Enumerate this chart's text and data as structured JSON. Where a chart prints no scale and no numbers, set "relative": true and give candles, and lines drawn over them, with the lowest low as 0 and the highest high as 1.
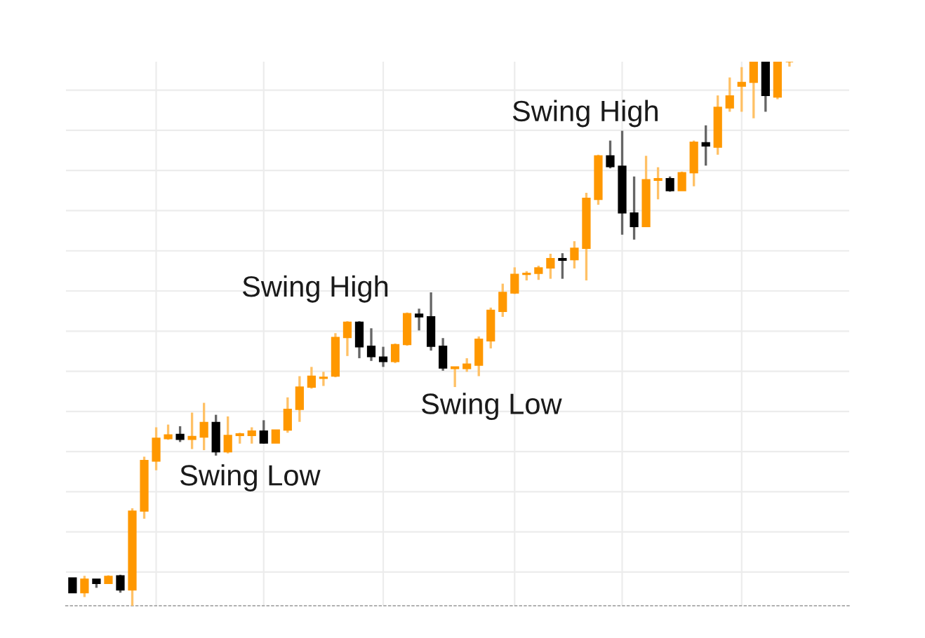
{
  "chart_data": {
    "type": "candlestick",
    "relative": true,
    "categories": [
      null,
      null,
      null,
      null,
      null,
      null,
      null,
      null,
      null,
      null,
      null,
      null,
      null,
      null,
      null,
      null,
      null,
      null,
      null,
      null,
      null,
      null,
      null,
      null,
      null,
      null,
      null,
      null,
      null,
      null,
      null,
      null,
      null,
      null,
      null,
      null,
      null,
      null,
      null,
      null,
      null,
      null,
      null,
      null,
      null,
      null,
      null,
      null,
      null,
      null,
      null,
      null,
      null,
      null,
      null,
      null,
      null,
      null,
      null,
      null,
      null
    ],
    "ohlc": [
      [
        0.051,
        0.051,
        0.024,
        0.024
      ],
      [
        0.024,
        0.055,
        0.016,
        0.049
      ],
      [
        0.049,
        0.049,
        0.033,
        0.041
      ],
      [
        0.041,
        0.056,
        0.041,
        0.054
      ],
      [
        0.055,
        0.057,
        0.024,
        0.029
      ],
      [
        0.029,
        0.179,
        0.0,
        0.174
      ],
      [
        0.174,
        0.274,
        0.16,
        0.267
      ],
      [
        0.266,
        0.328,
        0.249,
        0.308
      ],
      [
        0.307,
        0.333,
        0.305,
        0.314
      ],
      [
        0.315,
        0.33,
        0.301,
        0.306
      ],
      [
        0.306,
        0.355,
        0.288,
        0.311
      ],
      [
        0.31,
        0.373,
        0.286,
        0.337
      ],
      [
        0.337,
        0.351,
        0.276,
        0.283
      ],
      [
        0.283,
        0.348,
        0.28,
        0.313
      ],
      [
        0.313,
        0.318,
        0.298,
        0.316
      ],
      [
        0.313,
        0.328,
        0.298,
        0.321
      ],
      [
        0.321,
        0.341,
        0.298,
        0.299
      ],
      [
        0.299,
        0.323,
        0.299,
        0.323
      ],
      [
        0.323,
        0.383,
        0.318,
        0.361
      ],
      [
        0.361,
        0.422,
        0.338,
        0.402
      ],
      [
        0.402,
        0.439,
        0.399,
        0.422
      ],
      [
        0.418,
        0.43,
        0.404,
        0.42
      ],
      [
        0.422,
        0.501,
        0.42,
        0.493
      ],
      [
        0.493,
        0.523,
        0.459,
        0.521
      ],
      [
        0.521,
        0.523,
        0.455,
        0.476
      ],
      [
        0.477,
        0.51,
        0.45,
        0.458
      ],
      [
        0.457,
        0.476,
        0.439,
        0.449
      ],
      [
        0.449,
        0.482,
        0.446,
        0.48
      ],
      [
        0.48,
        0.539,
        0.478,
        0.537
      ],
      [
        0.536,
        0.546,
        0.506,
        0.531
      ],
      [
        0.531,
        0.576,
        0.469,
        0.477
      ],
      [
        0.477,
        0.492,
        0.432,
        0.437
      ],
      [
        0.436,
        0.439,
        0.402,
        0.439
      ],
      [
        0.436,
        0.455,
        0.43,
        0.444
      ],
      [
        0.442,
        0.495,
        0.422,
        0.49
      ],
      [
        0.487,
        0.548,
        0.473,
        0.543
      ],
      [
        0.541,
        0.592,
        0.531,
        0.576
      ],
      [
        0.575,
        0.622,
        0.573,
        0.609
      ],
      [
        0.609,
        0.615,
        0.598,
        0.611
      ],
      [
        0.611,
        0.625,
        0.599,
        0.621
      ],
      [
        0.621,
        0.647,
        0.601,
        0.638
      ],
      [
        0.638,
        0.648,
        0.601,
        0.635
      ],
      [
        0.636,
        0.67,
        0.62,
        0.657
      ],
      [
        0.657,
        0.759,
        0.598,
        0.749
      ],
      [
        0.747,
        0.829,
        0.737,
        0.827
      ],
      [
        0.827,
        0.855,
        0.804,
        0.807
      ],
      [
        0.808,
        0.873,
        0.682,
        0.722
      ],
      [
        0.722,
        0.789,
        0.673,
        0.697
      ],
      [
        0.697,
        0.827,
        0.697,
        0.783
      ],
      [
        0.782,
        0.806,
        0.747,
        0.785
      ],
      [
        0.785,
        0.789,
        0.761,
        0.763
      ],
      [
        0.763,
        0.798,
        0.763,
        0.796
      ],
      [
        0.796,
        0.855,
        0.771,
        0.852
      ],
      [
        0.851,
        0.883,
        0.809,
        0.845
      ],
      [
        0.843,
        0.938,
        0.829,
        0.916
      ],
      [
        0.915,
        0.971,
        0.908,
        0.937
      ],
      [
        0.955,
        0.99,
        0.908,
        0.962
      ],
      [
        0.962,
        1.0,
        0.896,
        1.0
      ],
      [
        1.0,
        1.0,
        0.908,
        0.938
      ],
      [
        0.935,
        1.0,
        0.931,
        1.0
      ],
      [
        1.0,
        1.0,
        0.991,
        1.0
      ]
    ],
    "colors": [
      "#000000",
      "#ff9800",
      "#000000",
      "#ff9800",
      "#000000",
      "#ff9800",
      "#ff9800",
      "#ff9800",
      "#ff9800",
      "#000000",
      "#ff9800",
      "#ff9800",
      "#000000",
      "#ff9800",
      "#ff9800",
      "#ff9800",
      "#000000",
      "#ff9800",
      "#ff9800",
      "#ff9800",
      "#ff9800",
      "#ff9800",
      "#ff9800",
      "#ff9800",
      "#000000",
      "#000000",
      "#000000",
      "#ff9800",
      "#ff9800",
      "#000000",
      "#000000",
      "#000000",
      "#ff9800",
      "#ff9800",
      "#ff9800",
      "#ff9800",
      "#ff9800",
      "#ff9800",
      "#ff9800",
      "#ff9800",
      "#ff9800",
      "#000000",
      "#ff9800",
      "#ff9800",
      "#ff9800",
      "#000000",
      "#000000",
      "#000000",
      "#ff9800",
      "#ff9800",
      "#000000",
      "#ff9800",
      "#ff9800",
      "#000000",
      "#ff9800",
      "#ff9800",
      "#ff9800",
      "#ff9800",
      "#000000",
      "#ff9800",
      "#ff9800"
    ],
    "annotations": [
      "Swing Low",
      "Swing High",
      "Swing Low",
      "Swing High"
    ],
    "grid": true
  }
}
